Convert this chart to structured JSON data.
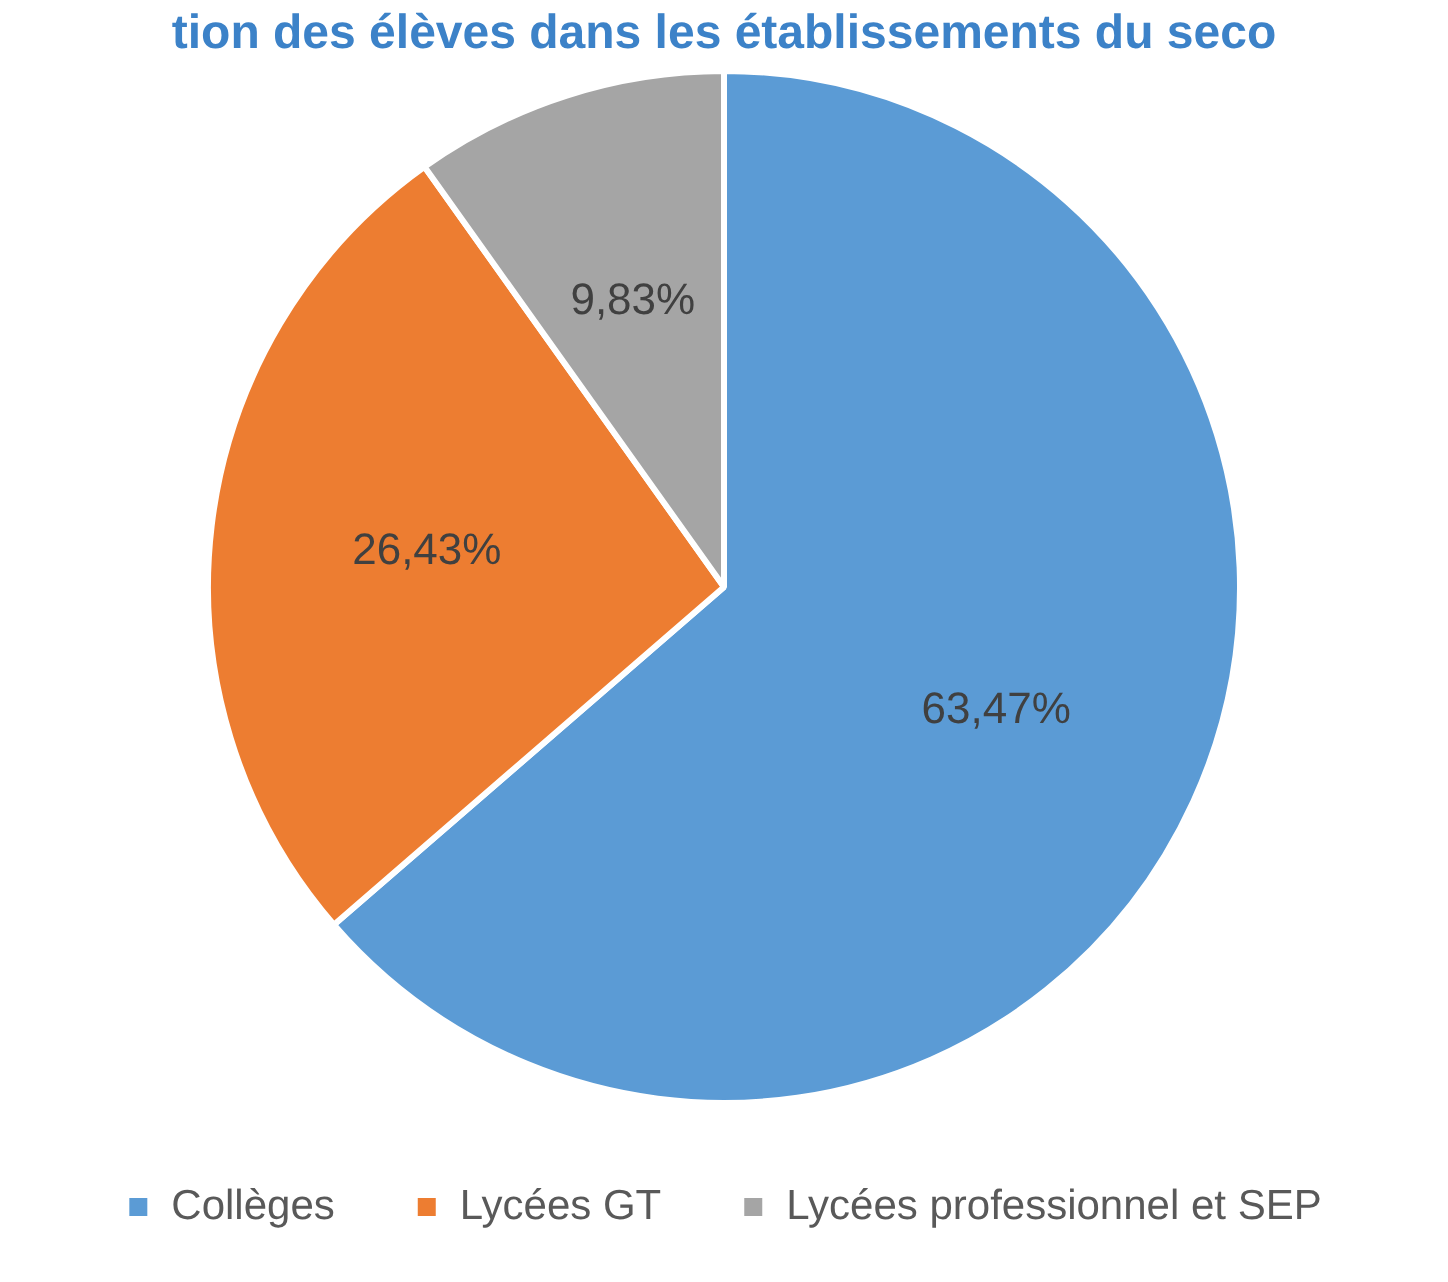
{
  "chart_data": {
    "type": "pie",
    "title": "tion des élèves dans les établissements du seco",
    "categories": [
      "Collèges",
      "Lycées GT",
      "Lycées professionnel et SEP"
    ],
    "values": [
      63.47,
      26.43,
      9.83
    ],
    "colors": [
      "#5b9bd5",
      "#ed7d31",
      "#a5a5a5"
    ],
    "value_labels": [
      "63,47%",
      "26,43%",
      "9,83%"
    ],
    "legend": "bottom"
  }
}
